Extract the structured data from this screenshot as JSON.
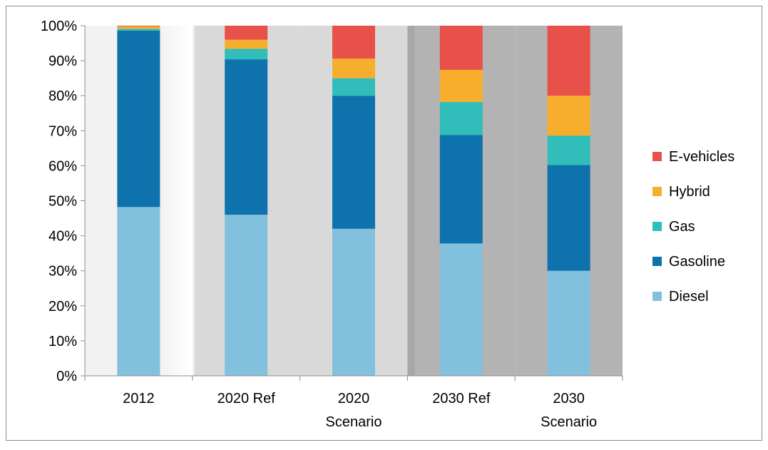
{
  "chart_data": {
    "type": "bar",
    "stacked": true,
    "categories": [
      "2012",
      "2020 Ref",
      "2020 Scenario",
      "2030 Ref",
      "2030 Scenario"
    ],
    "category_labels": [
      [
        "2012"
      ],
      [
        "2020 Ref"
      ],
      [
        "2020",
        "Scenario"
      ],
      [
        "2030 Ref"
      ],
      [
        "2030",
        "Scenario"
      ]
    ],
    "series": [
      {
        "name": "Diesel",
        "color": "#82c1dd",
        "values": [
          48.2,
          46.0,
          42.0,
          37.8,
          30.0
        ]
      },
      {
        "name": "Gasoline",
        "color": "#0e72ad",
        "values": [
          50.4,
          44.4,
          38.0,
          31.0,
          30.2
        ]
      },
      {
        "name": "Gas",
        "color": "#31bdb9",
        "values": [
          0.5,
          3.0,
          5.0,
          9.4,
          8.4
        ]
      },
      {
        "name": "Hybrid",
        "color": "#f7ae2c",
        "values": [
          0.7,
          2.6,
          5.6,
          9.2,
          11.4
        ]
      },
      {
        "name": "E-vehicles",
        "color": "#e8504a",
        "values": [
          0.2,
          4.0,
          9.4,
          12.6,
          20.0
        ]
      }
    ],
    "ylim": [
      0,
      100
    ],
    "yticks": [
      "0%",
      "10%",
      "20%",
      "30%",
      "40%",
      "50%",
      "60%",
      "70%",
      "80%",
      "90%",
      "100%"
    ],
    "legend_order": [
      "E-vehicles",
      "Hybrid",
      "Gas",
      "Gasoline",
      "Diesel"
    ],
    "legend_position": "right",
    "background_bands": [
      "#f2f2f2",
      "#d9d9d9",
      "#d9d9d9",
      "#b3b3b3",
      "#b3b3b3"
    ],
    "title": "",
    "xlabel": "",
    "ylabel": ""
  }
}
